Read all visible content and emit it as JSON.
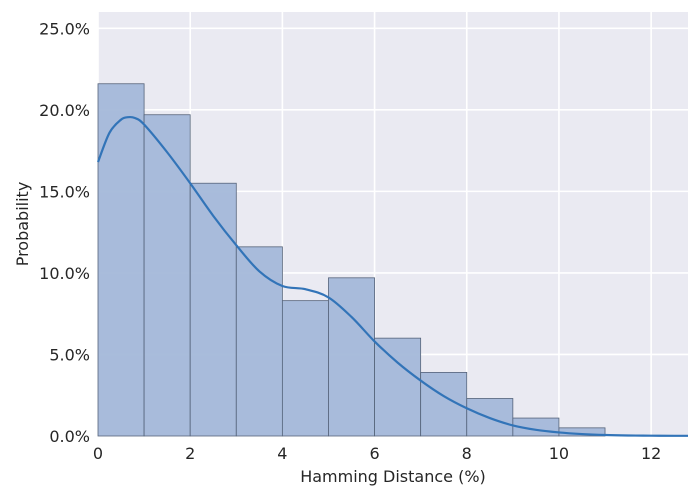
{
  "chart_data": {
    "type": "bar",
    "xlabel": "Hamming Distance (%)",
    "ylabel": "Probability",
    "xlim": [
      0,
      12.8
    ],
    "ylim": [
      0,
      0.26
    ],
    "x_ticks": [
      0,
      2,
      4,
      6,
      8,
      10,
      12
    ],
    "x_tick_labels": [
      "0",
      "2",
      "4",
      "6",
      "8",
      "10",
      "12"
    ],
    "y_ticks": [
      0,
      0.05,
      0.1,
      0.15,
      0.2,
      0.25
    ],
    "y_tick_labels": [
      "0.0%",
      "5.0%",
      "10.0%",
      "15.0%",
      "20.0%",
      "25.0%"
    ],
    "grid": true,
    "bins": [
      {
        "x0": 0,
        "x1": 1,
        "value": 0.216
      },
      {
        "x0": 1,
        "x1": 2,
        "value": 0.197
      },
      {
        "x0": 2,
        "x1": 3,
        "value": 0.155
      },
      {
        "x0": 3,
        "x1": 4,
        "value": 0.116
      },
      {
        "x0": 4,
        "x1": 5,
        "value": 0.083
      },
      {
        "x0": 5,
        "x1": 6,
        "value": 0.097
      },
      {
        "x0": 6,
        "x1": 7,
        "value": 0.06
      },
      {
        "x0": 7,
        "x1": 8,
        "value": 0.039
      },
      {
        "x0": 8,
        "x1": 9,
        "value": 0.023
      },
      {
        "x0": 9,
        "x1": 10,
        "value": 0.011
      },
      {
        "x0": 10,
        "x1": 11,
        "value": 0.005
      }
    ],
    "kde": {
      "x": [
        0,
        0.25,
        0.5,
        0.65,
        0.8,
        1.0,
        1.5,
        2.0,
        2.5,
        3.0,
        3.5,
        4.0,
        4.5,
        5.0,
        5.5,
        6.0,
        6.5,
        7.0,
        7.5,
        8.0,
        8.5,
        9.0,
        9.5,
        10.0,
        10.5,
        11.0,
        11.5,
        12.0,
        12.5,
        12.8
      ],
      "y": [
        0.168,
        0.186,
        0.194,
        0.1955,
        0.195,
        0.191,
        0.174,
        0.155,
        0.135,
        0.117,
        0.101,
        0.092,
        0.09,
        0.085,
        0.073,
        0.058,
        0.045,
        0.034,
        0.0245,
        0.017,
        0.011,
        0.0065,
        0.0038,
        0.0022,
        0.0012,
        0.0006,
        0.0003,
        0.0002,
        0.0001,
        0.0001
      ]
    },
    "colors": {
      "plot_background": "#eaeaf2",
      "grid": "#ffffff",
      "bar_fill": "#a4b8d9",
      "bar_edge": "#55637a",
      "kde_line": "#3274b8"
    }
  }
}
